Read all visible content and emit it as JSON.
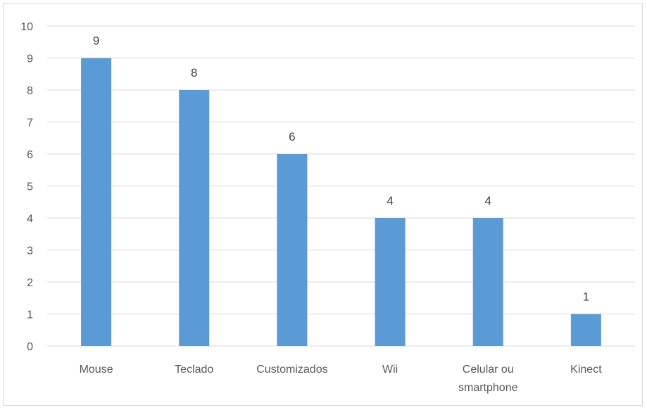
{
  "chart_data": {
    "type": "bar",
    "categories": [
      [
        "Mouse"
      ],
      [
        "Teclado"
      ],
      [
        "Customizados"
      ],
      [
        "Wii"
      ],
      [
        "Celular ou",
        "smartphone"
      ],
      [
        "Kinect"
      ]
    ],
    "values": [
      9,
      8,
      6,
      4,
      4,
      1
    ],
    "ylim": [
      0,
      10
    ],
    "yticks": [
      "0",
      "1",
      "2",
      "3",
      "4",
      "5",
      "6",
      "7",
      "8",
      "9",
      "10"
    ],
    "grid": true,
    "legend": "none",
    "bar_color": "#5b9bd5",
    "grid_color": "#d9d9d9",
    "title": "",
    "xlabel": "",
    "ylabel": ""
  }
}
